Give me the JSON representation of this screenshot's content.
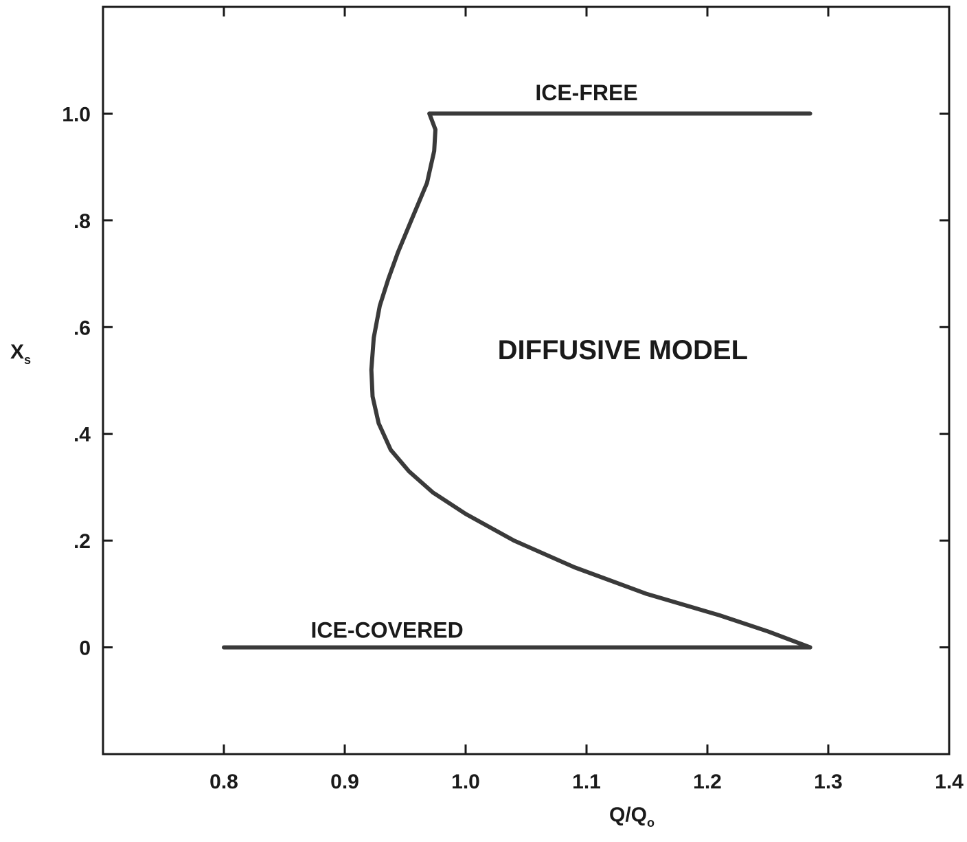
{
  "chart_data": {
    "type": "line",
    "title": "",
    "xlabel": "Q/Q₀",
    "xlabel_main": "Q/Q",
    "xlabel_sub": "o",
    "ylabel_main": "X",
    "ylabel_sub": "s",
    "xlim": [
      0.7,
      1.4
    ],
    "ylim": [
      -0.2,
      1.2
    ],
    "x_ticks": [
      0.8,
      0.9,
      1.0,
      1.1,
      1.2,
      1.3,
      1.4
    ],
    "x_tick_labels": [
      "0.8",
      "0.9",
      "1.0",
      "1.1",
      "1.2",
      "1.3",
      "1.4"
    ],
    "y_ticks": [
      0,
      0.2,
      0.4,
      0.6,
      0.8,
      1.0
    ],
    "y_tick_labels": [
      "0",
      ".2",
      ".4",
      ".6",
      ".8",
      "1.0"
    ],
    "grid": false,
    "line_color": "#3a3a3a",
    "series": [
      {
        "x": [
          0.97,
          1.285
        ],
        "y": [
          1.0,
          1.0
        ]
      },
      {
        "x": [
          0.97,
          0.975,
          0.974,
          0.968,
          0.955,
          0.944,
          0.936,
          0.929,
          0.924,
          0.922,
          0.923,
          0.928,
          0.938,
          0.953,
          0.973,
          1.0,
          1.04,
          1.09,
          1.15,
          1.21,
          1.25,
          1.285
        ],
        "y": [
          1.0,
          0.97,
          0.93,
          0.87,
          0.8,
          0.74,
          0.69,
          0.64,
          0.58,
          0.52,
          0.47,
          0.42,
          0.37,
          0.33,
          0.29,
          0.25,
          0.2,
          0.15,
          0.1,
          0.06,
          0.03,
          0.0
        ]
      },
      {
        "x": [
          0.8,
          1.285
        ],
        "y": [
          0.0,
          0.0
        ]
      }
    ],
    "annotations": [
      {
        "text": "ICE-FREE",
        "x": 1.1,
        "y": 1.025
      },
      {
        "text": "ICE-COVERED",
        "x": 0.935,
        "y": 0.018
      },
      {
        "text": "DIFFUSIVE MODEL",
        "x": 1.13,
        "y": 0.54
      }
    ]
  }
}
